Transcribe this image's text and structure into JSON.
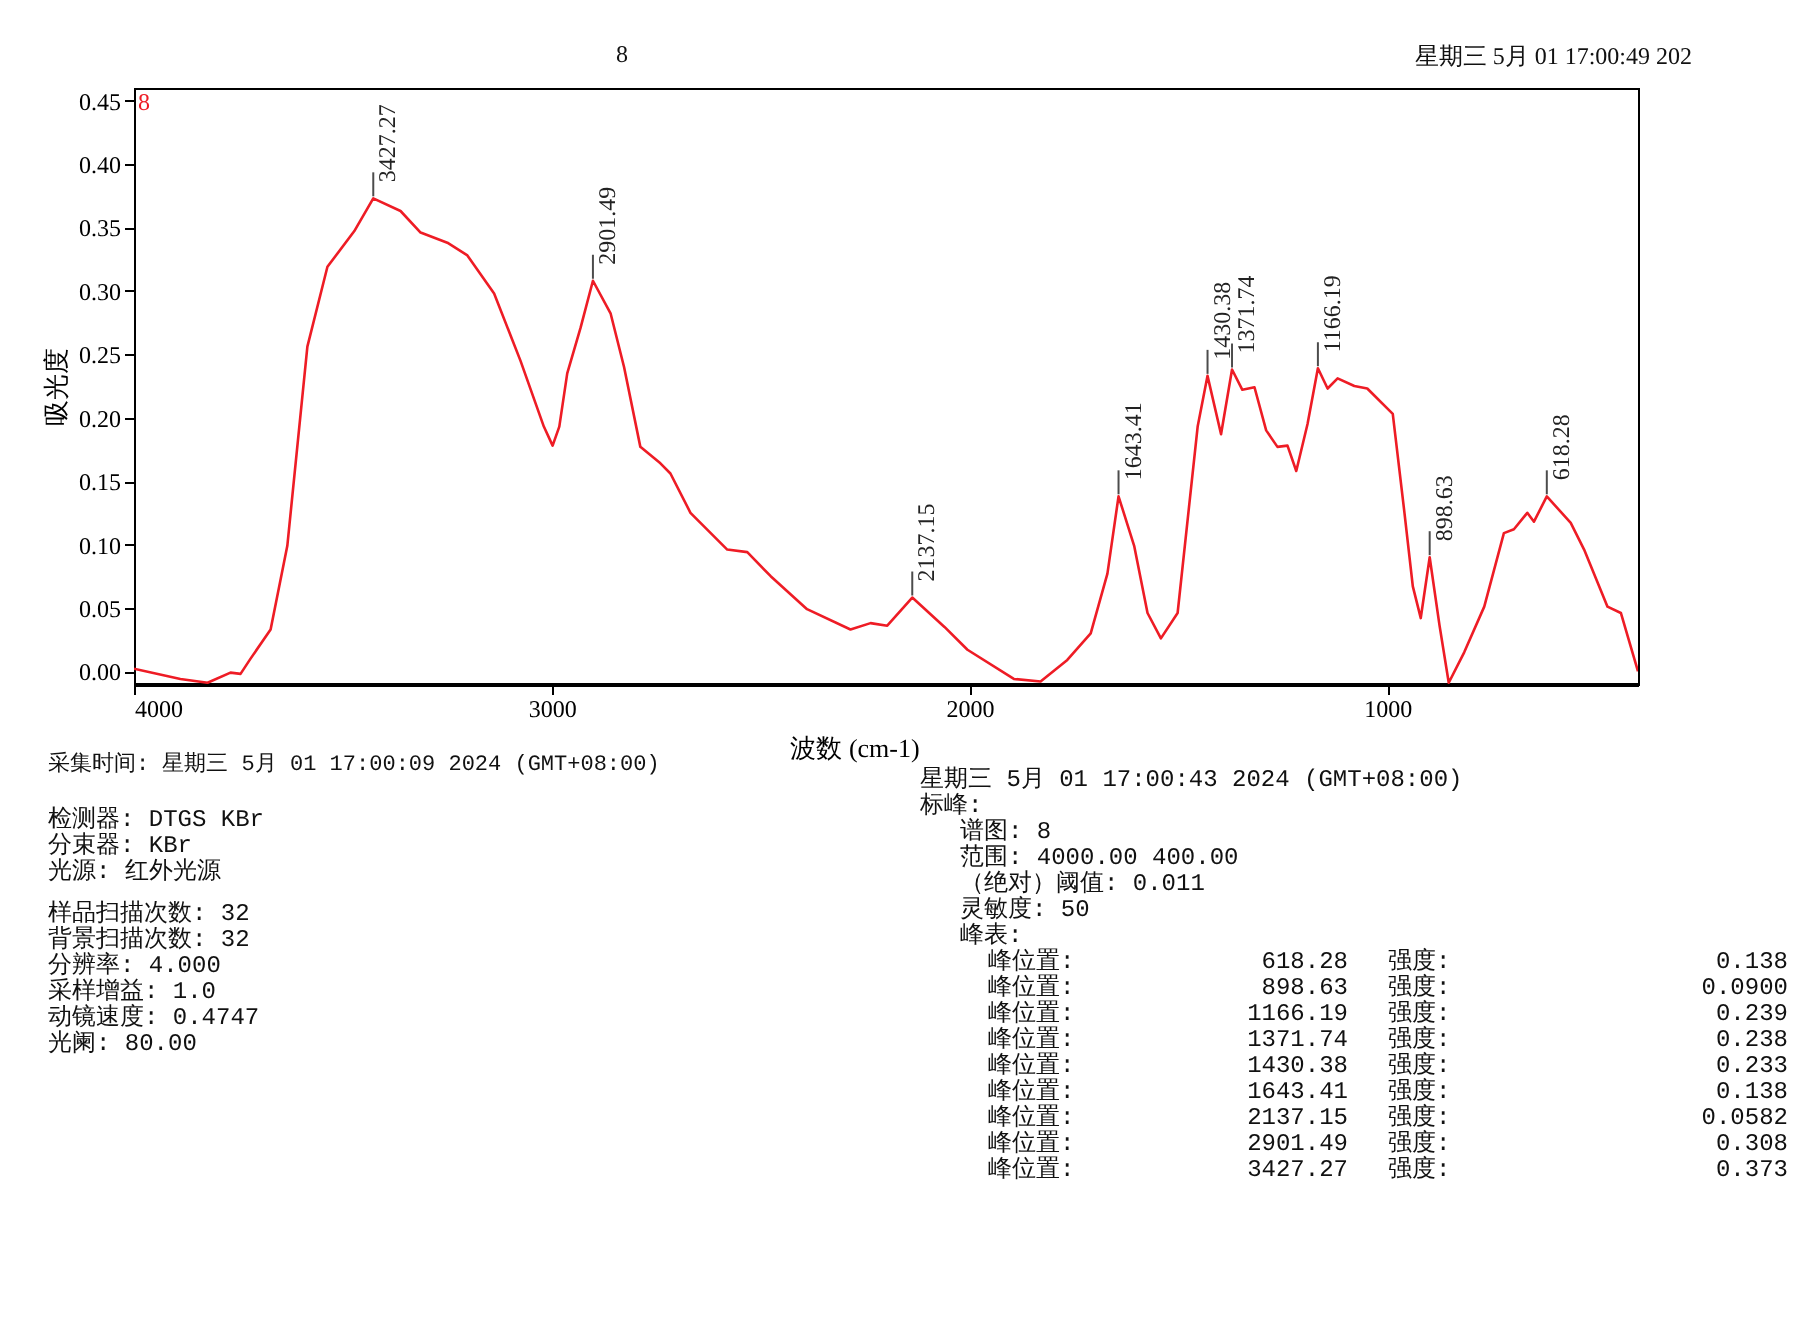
{
  "chart_data": {
    "type": "line",
    "xlabel": "波数 (cm-1)",
    "ylabel": "吸光度",
    "x": [
      4000,
      3889,
      3824,
      3769,
      3745,
      3721,
      3673,
      3633,
      3585,
      3537,
      3473,
      3427.27,
      3362,
      3314,
      3250,
      3202,
      3138,
      3075,
      3019,
      2998,
      2982,
      2963,
      2931,
      2901.49,
      2859,
      2827,
      2788,
      2740,
      2716,
      2668,
      2580,
      2532,
      2476,
      2389,
      2285,
      2237,
      2197,
      2137.15,
      2060,
      2005,
      1894,
      1830,
      1766,
      1710,
      1670,
      1643.41,
      1606,
      1574,
      1542,
      1502,
      1454,
      1430.38,
      1398,
      1371.74,
      1347,
      1318,
      1290,
      1263,
      1239,
      1218,
      1191,
      1166.19,
      1143,
      1119,
      1079,
      1048,
      987,
      959,
      939,
      920,
      898.63,
      875,
      853,
      816,
      768,
      721,
      697,
      665,
      649,
      618.28,
      561,
      529,
      473,
      441,
      400
    ],
    "series": [
      {
        "name": "8",
        "color": "#ee1c25",
        "values": [
          0.002,
          -0.006,
          -0.009,
          -0.001,
          -0.002,
          0.01,
          0.033,
          0.099,
          0.256,
          0.319,
          0.347,
          0.373,
          0.363,
          0.346,
          0.338,
          0.328,
          0.298,
          0.245,
          0.193,
          0.178,
          0.193,
          0.235,
          0.271,
          0.308,
          0.282,
          0.24,
          0.177,
          0.164,
          0.156,
          0.125,
          0.096,
          0.094,
          0.075,
          0.049,
          0.033,
          0.038,
          0.036,
          0.0582,
          0.035,
          0.017,
          -0.006,
          -0.008,
          0.009,
          0.03,
          0.077,
          0.138,
          0.099,
          0.046,
          0.026,
          0.046,
          0.193,
          0.233,
          0.187,
          0.238,
          0.222,
          0.224,
          0.19,
          0.177,
          0.178,
          0.158,
          0.195,
          0.239,
          0.223,
          0.231,
          0.225,
          0.223,
          0.203,
          0.125,
          0.067,
          0.042,
          0.09,
          0.036,
          -0.009,
          0.015,
          0.051,
          0.109,
          0.112,
          0.125,
          0.118,
          0.138,
          0.117,
          0.096,
          0.051,
          0.046,
          0.0
        ]
      }
    ],
    "xlim": [
      4000,
      400
    ],
    "xticks": [
      4000,
      3000,
      2000,
      1000
    ],
    "ylim": [
      -0.01,
      0.46
    ],
    "yticks": [
      {
        "value": 0,
        "label": "0.00"
      },
      0.05,
      {
        "value": 0.1,
        "label": "0.10"
      },
      0.15,
      {
        "value": 0.2,
        "label": "0.20"
      },
      0.25,
      {
        "value": 0.3,
        "label": "0.30"
      },
      0.35,
      {
        "value": 0.4,
        "label": "0.40"
      },
      0.45
    ],
    "annotations": [
      {
        "text": "3427.27",
        "x": 3427.27,
        "y": 0.373
      },
      {
        "text": "2901.49",
        "x": 2901.49,
        "y": 0.308
      },
      {
        "text": "2137.15",
        "x": 2137.15,
        "y": 0.0582
      },
      {
        "text": "1643.41",
        "x": 1643.41,
        "y": 0.138
      },
      {
        "text": "1430.38",
        "x": 1430.38,
        "y": 0.233
      },
      {
        "text": "1371.74",
        "x": 1371.74,
        "y": 0.238
      },
      {
        "text": "1166.19",
        "x": 1166.19,
        "y": 0.239
      },
      {
        "text": "898.63",
        "x": 898.63,
        "y": 0.09
      },
      {
        "text": "618.28",
        "x": 618.28,
        "y": 0.138
      },
      "8",
      "星期三 5月 01 17:00:49 202",
      "采集时间: 星期三 5月 01 17:00:09 2024 (GMT+08:00)",
      "检测器: DTGS KBr",
      "分束器: KBr",
      "光源: 红外光源",
      "样品扫描次数: 32",
      "背景扫描次数: 32",
      "分辨率: 4.000",
      "采样增益: 1.0",
      "动镜速度: 0.4747",
      "光阑: 80.00",
      "星期三 5月 01 17:00:43 2024 (GMT+08:00)",
      "标峰:",
      "谱图: 8",
      "范围: 4000.00 400.00",
      "（绝对）阈值: 0.011",
      "灵敏度: 50",
      "峰表:",
      "峰位置: 618.28 强度: 0.138",
      "峰位置: 898.63 强度: 0.0900",
      "峰位置: 1166.19 强度: 0.239",
      "峰位置: 1371.74 强度: 0.238",
      "峰位置: 1430.38 强度: 0.233",
      "峰位置: 1643.41 强度: 0.138",
      "峰位置: 2137.15 强度: 0.0582",
      "峰位置: 2901.49 强度: 0.308",
      "峰位置: 3427.27 强度: 0.373"
    ]
  }
}
